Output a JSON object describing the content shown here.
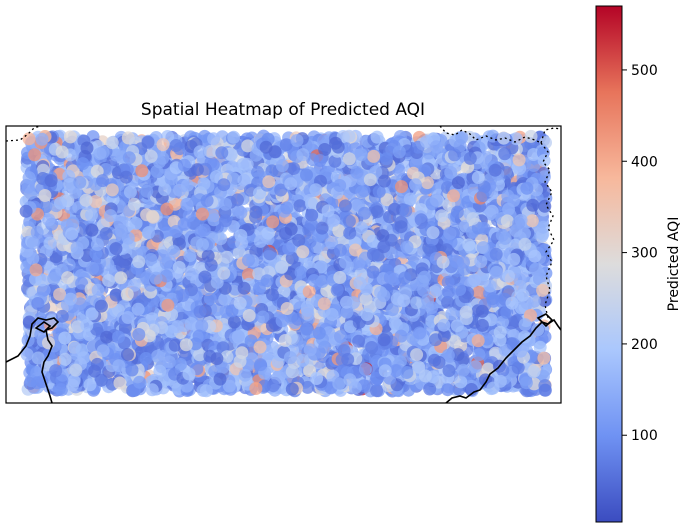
{
  "chart_data": {
    "type": "scatter",
    "title": "Spatial Heatmap of Predicted AQI",
    "xlabel": "",
    "ylabel": "",
    "colormap": "coolwarm",
    "colorbar": {
      "label": "Predicted AQI",
      "vmin": 5,
      "vmax": 570,
      "ticks": [
        100,
        200,
        300,
        400,
        500
      ],
      "tick_labels": [
        "100",
        "200",
        "300",
        "400",
        "500"
      ],
      "stops": [
        "#3b4cc0",
        "#6f92f3",
        "#aac7fd",
        "#dddcdc",
        "#f7b89c",
        "#e7745b",
        "#b40426"
      ]
    },
    "map": {
      "features": [
        "coastline",
        "borders (dotted)"
      ]
    },
    "marker_alpha": 0.75,
    "points": {
      "count": 6000,
      "lon_range": [
        0,
        1
      ],
      "lat_range": [
        0,
        1
      ],
      "value_distribution": "mostly 50-250, scattered highs up to ~560"
    }
  },
  "icons": {
    "map_border": "dotted-border-line",
    "coastline": "coastline-line"
  },
  "colors": {
    "axes_frame": "#000000",
    "colorbar_frame": "#000000",
    "border_line": "#222222"
  }
}
